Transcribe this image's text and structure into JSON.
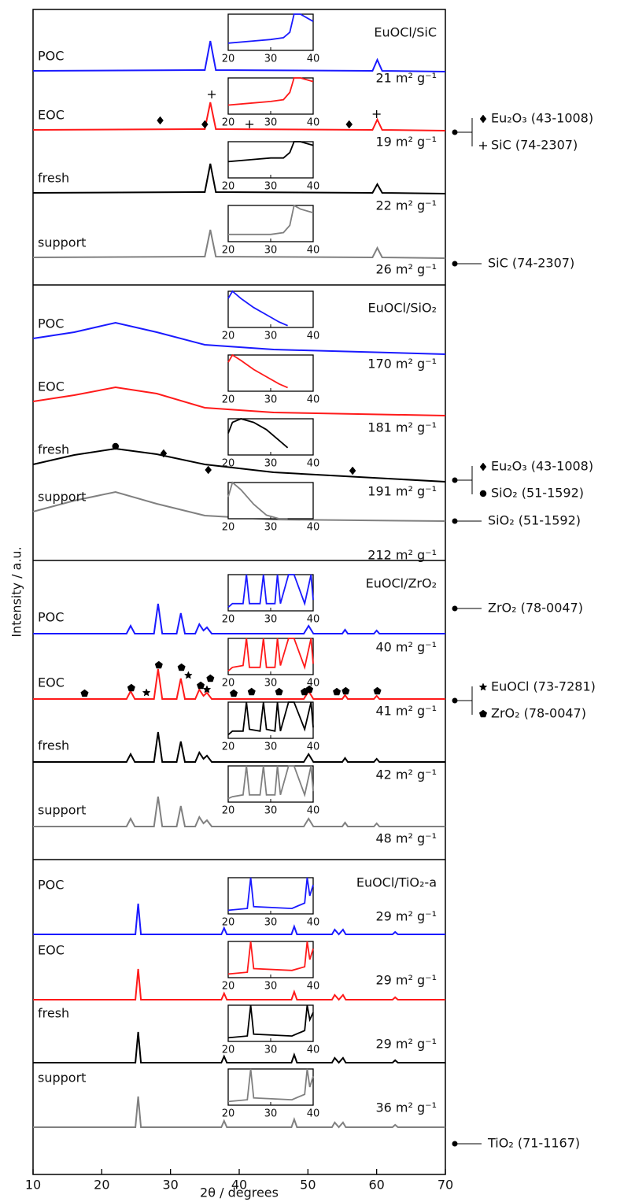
{
  "chart_data": {
    "type": "line",
    "xlabel": "2θ / degrees",
    "ylabel": "Intensity / a.u.",
    "xlim": [
      10,
      70
    ],
    "xticks": [
      10,
      20,
      30,
      40,
      50,
      60,
      70
    ],
    "ylim": [
      0,
      148
    ],
    "inset_xlim": [
      20,
      40
    ],
    "inset_xticks": [
      20,
      30,
      40
    ],
    "inset_ylim": [
      0,
      10
    ],
    "panels": [
      {
        "title": "EuOCl/SiC",
        "x": [
          10,
          35,
          35.8,
          36.6,
          59.4,
          60.1,
          60.8,
          70
        ],
        "inset_x": [
          20,
          25,
          30,
          33,
          34.5,
          35.5,
          37,
          40
        ],
        "series": [
          {
            "name": "POC",
            "color": "#1a1aff",
            "surface_area": "21 m² g⁻¹",
            "values": [
              140.2,
              140.3,
              144.0,
              140.3,
              140.2,
              141.6,
              140.2,
              140.1
            ],
            "inset_values": [
              2,
              2.5,
              3,
              3.5,
              5,
              10,
              10,
              8
            ]
          },
          {
            "name": "EOC",
            "color": "#ff1a1a",
            "surface_area": "19 m² g⁻¹",
            "values": [
              132.7,
              132.8,
              136.2,
              132.8,
              132.7,
              134.0,
              132.7,
              132.6
            ],
            "inset_values": [
              2.5,
              3,
              3.5,
              4,
              6,
              10,
              10,
              9
            ]
          },
          {
            "name": "fresh",
            "color": "#000000",
            "surface_area": "22 m² g⁻¹",
            "values": [
              124.7,
              124.8,
              128.4,
              124.8,
              124.7,
              125.8,
              124.7,
              124.6
            ],
            "inset_values": [
              4.5,
              5,
              5.5,
              5.5,
              7,
              10,
              10,
              9
            ]
          },
          {
            "name": "support",
            "color": "#808080",
            "surface_area": "26 m² g⁻¹",
            "values": [
              116.5,
              116.6,
              120.0,
              116.6,
              116.5,
              117.7,
              116.5,
              116.4
            ],
            "inset_values": [
              2,
              2,
              2,
              2.5,
              4.5,
              10,
              9,
              8
            ]
          }
        ],
        "markers": [
          {
            "symbol": "diamond",
            "x": 28.5,
            "y": 133.9
          },
          {
            "symbol": "diamond",
            "x": 35,
            "y": 133.4
          },
          {
            "symbol": "diamond",
            "x": 56,
            "y": 133.4
          },
          {
            "symbol": "plus",
            "x": 36,
            "y": 137.2
          },
          {
            "symbol": "plus",
            "x": 41.5,
            "y": 133.4
          },
          {
            "symbol": "plus",
            "x": 60,
            "y": 134.7
          }
        ],
        "phases": [
          {
            "symbol": "diamond",
            "label": "Eu₂O₃ (43-1008)"
          },
          {
            "symbol": "plus",
            "label": "SiC (74-2307)"
          }
        ],
        "support_phase": "SiC (74-2307)"
      },
      {
        "title": "EuOCl/SiO₂",
        "x": [
          10,
          16,
          22,
          28,
          35,
          45,
          70
        ],
        "inset_x": [
          20,
          21,
          23,
          26,
          29,
          32,
          34
        ],
        "series": [
          {
            "name": "POC",
            "color": "#1a1aff",
            "surface_area": "170 m² g⁻¹",
            "values": [
              106.2,
              107.0,
              108.2,
              107.0,
              105.4,
              104.8,
              104.2
            ],
            "inset_values": [
              8,
              10,
              8,
              5.5,
              3.5,
              1.5,
              0.5
            ]
          },
          {
            "name": "EOC",
            "color": "#ff1a1a",
            "surface_area": "181 m² g⁻¹",
            "values": [
              98.2,
              99.0,
              100.0,
              99.2,
              97.4,
              96.8,
              96.4
            ],
            "inset_values": [
              8,
              10,
              8.5,
              6,
              4,
              2,
              1
            ]
          },
          {
            "name": "fresh",
            "color": "#000000",
            "surface_area": "191 m² g⁻¹",
            "values": [
              90.2,
              91.4,
              92.2,
              91.5,
              90.2,
              89.2,
              88.0
            ],
            "inset_values": [
              6,
              9,
              10,
              9,
              7,
              4,
              2
            ]
          },
          {
            "name": "support",
            "color": "#808080",
            "surface_area": "212 m² g⁻¹",
            "values": [
              84.2,
              85.6,
              86.7,
              85.2,
              83.7,
              83.2,
              83.0
            ],
            "inset_values": [
              6,
              10,
              8,
              4,
              1,
              0,
              0
            ]
          }
        ],
        "markers": [
          {
            "symbol": "circle",
            "x": 22,
            "y": 92.5
          },
          {
            "symbol": "diamond",
            "x": 29,
            "y": 91.6
          },
          {
            "symbol": "diamond",
            "x": 35.5,
            "y": 89.5
          },
          {
            "symbol": "diamond",
            "x": 56.5,
            "y": 89.4
          }
        ],
        "phases": [
          {
            "symbol": "diamond",
            "label": "Eu₂O₃ (43-1008)"
          },
          {
            "symbol": "circle",
            "label": "SiO₂ (51-1592)"
          }
        ],
        "support_phase": "SiO₂ (51-1592)"
      },
      {
        "title": "EuOCl/ZrO₂",
        "x": [
          10,
          23.6,
          24.2,
          24.8,
          27.6,
          28.2,
          28.8,
          30.9,
          31.5,
          32.1,
          33.6,
          34.2,
          34.8,
          35.3,
          36,
          49.4,
          50.1,
          50.8,
          55,
          55.4,
          55.8,
          59.6,
          60,
          60.4,
          70
        ],
        "inset_x": [
          20,
          21,
          23.5,
          24.3,
          25,
          27.5,
          28.3,
          29,
          31,
          31.6,
          32.3,
          34.2,
          35.5,
          38,
          39.5,
          40
        ],
        "series": [
          {
            "name": "POC",
            "color": "#1a1aff",
            "surface_area": "40 m² g⁻¹",
            "values": [
              68.7,
              68.7,
              69.7,
              68.7,
              68.7,
              72.5,
              68.7,
              68.7,
              71.3,
              68.7,
              68.7,
              69.9,
              69.1,
              69.5,
              68.7,
              68.7,
              69.7,
              68.7,
              68.7,
              69.2,
              68.7,
              68.7,
              69.1,
              68.7,
              68.7
            ],
            "inset_values": [
              1,
              2,
              2,
              10,
              2,
              2,
              10,
              2,
              2,
              10,
              2,
              10,
              10,
              2,
              10,
              3
            ]
          },
          {
            "name": "EOC",
            "color": "#ff1a1a",
            "surface_area": "41 m² g⁻¹",
            "values": [
              60.4,
              60.4,
              61.4,
              60.4,
              60.4,
              64.2,
              60.4,
              60.4,
              63.0,
              60.4,
              60.4,
              61.6,
              60.8,
              61.2,
              60.4,
              60.4,
              61.4,
              60.4,
              60.4,
              60.9,
              60.4,
              60.4,
              60.8,
              60.4,
              60.4
            ],
            "inset_values": [
              1,
              2,
              2.5,
              10,
              2,
              2,
              10,
              2,
              2,
              10,
              2.5,
              10,
              10,
              2,
              10,
              3
            ]
          },
          {
            "name": "fresh",
            "color": "#000000",
            "surface_area": "42 m² g⁻¹",
            "values": [
              52.4,
              52.4,
              53.4,
              52.4,
              52.4,
              56.2,
              52.4,
              52.4,
              55.0,
              52.4,
              52.4,
              53.6,
              52.8,
              53.2,
              52.4,
              52.4,
              53.4,
              52.4,
              52.4,
              52.9,
              52.4,
              52.4,
              52.8,
              52.4,
              52.4
            ],
            "inset_values": [
              1,
              2,
              2,
              10,
              2.5,
              2,
              10,
              2.5,
              2,
              10,
              2,
              10,
              10,
              2.5,
              10,
              3
            ]
          },
          {
            "name": "support",
            "color": "#808080",
            "surface_area": "48 m² g⁻¹",
            "values": [
              44.2,
              44.2,
              45.2,
              44.2,
              44.2,
              48.0,
              44.2,
              44.2,
              46.8,
              44.2,
              44.2,
              45.4,
              44.6,
              45.0,
              44.2,
              44.2,
              45.2,
              44.2,
              44.2,
              44.7,
              44.2,
              44.2,
              44.6,
              44.2,
              44.2
            ],
            "inset_values": [
              1,
              1.5,
              2,
              10,
              2,
              2,
              10,
              2,
              2,
              10,
              2,
              10,
              10,
              2,
              10,
              3
            ]
          }
        ],
        "markers": [
          {
            "symbol": "pentagon",
            "x": 17.5,
            "y": 61.1
          },
          {
            "symbol": "pentagon",
            "x": 24.3,
            "y": 61.8
          },
          {
            "symbol": "pentagon",
            "x": 28.3,
            "y": 64.7
          },
          {
            "symbol": "pentagon",
            "x": 31.6,
            "y": 64.4
          },
          {
            "symbol": "pentagon",
            "x": 34.4,
            "y": 62.1
          },
          {
            "symbol": "pentagon",
            "x": 35.8,
            "y": 63.0
          },
          {
            "symbol": "pentagon",
            "x": 39.2,
            "y": 61.1
          },
          {
            "symbol": "pentagon",
            "x": 41.8,
            "y": 61.3
          },
          {
            "symbol": "pentagon",
            "x": 45.8,
            "y": 61.3
          },
          {
            "symbol": "pentagon",
            "x": 49.5,
            "y": 61.3
          },
          {
            "symbol": "pentagon",
            "x": 50.2,
            "y": 61.6
          },
          {
            "symbol": "pentagon",
            "x": 54.2,
            "y": 61.3
          },
          {
            "symbol": "pentagon",
            "x": 55.5,
            "y": 61.4
          },
          {
            "symbol": "pentagon",
            "x": 60.1,
            "y": 61.4
          },
          {
            "symbol": "star",
            "x": 26.5,
            "y": 61.2
          },
          {
            "symbol": "star",
            "x": 32.6,
            "y": 63.4
          },
          {
            "symbol": "star",
            "x": 35.3,
            "y": 61.6
          }
        ],
        "phases": [
          {
            "symbol": "star",
            "label": "EuOCl (73-7281)"
          },
          {
            "symbol": "pentagon",
            "label": "ZrO₂ (78-0047)"
          }
        ],
        "support_phase": "ZrO₂ (78-0047)"
      },
      {
        "title": "EuOCl/TiO₂-a",
        "x": [
          10,
          24.9,
          25.3,
          25.7,
          37.4,
          37.8,
          38.2,
          47.6,
          48.0,
          48.4,
          53.5,
          53.9,
          54.5,
          55.1,
          55.5,
          62.3,
          62.7,
          63.1,
          70
        ],
        "inset_x": [
          20,
          24.5,
          25.3,
          26,
          35,
          38,
          38.6,
          39.2,
          40
        ],
        "series": [
          {
            "name": "POC",
            "color": "#1a1aff",
            "surface_area": "29 m² g⁻¹",
            "values": [
              30.5,
              30.5,
              34.4,
              30.5,
              30.5,
              31.3,
              30.5,
              30.5,
              31.5,
              30.5,
              30.5,
              31.1,
              30.5,
              31.1,
              30.5,
              30.5,
              30.8,
              30.5,
              30.5
            ],
            "inset_values": [
              1,
              1.5,
              10,
              2,
              1.5,
              3,
              10,
              5,
              8
            ]
          },
          {
            "name": "EOC",
            "color": "#ff1a1a",
            "surface_area": "29 m² g⁻¹",
            "values": [
              22.2,
              22.2,
              26.1,
              22.2,
              22.2,
              23.0,
              22.2,
              22.2,
              23.2,
              22.2,
              22.2,
              22.8,
              22.2,
              22.8,
              22.2,
              22.2,
              22.5,
              22.2,
              22.2
            ],
            "inset_values": [
              1,
              1.5,
              10,
              2.5,
              2,
              3,
              10,
              5,
              8
            ]
          },
          {
            "name": "fresh",
            "color": "#000000",
            "surface_area": "29 m² g⁻¹",
            "values": [
              14.2,
              14.2,
              18.1,
              14.2,
              14.2,
              15.0,
              14.2,
              14.2,
              15.2,
              14.2,
              14.2,
              14.8,
              14.2,
              14.8,
              14.2,
              14.2,
              14.5,
              14.2,
              14.2
            ],
            "inset_values": [
              1,
              1.5,
              10,
              2,
              1.5,
              3,
              10,
              6,
              8
            ]
          },
          {
            "name": "support",
            "color": "#808080",
            "surface_area": "36 m² g⁻¹",
            "values": [
              6.0,
              6.0,
              9.9,
              6.0,
              6.0,
              6.8,
              6.0,
              6.0,
              7.0,
              6.0,
              6.0,
              6.6,
              6.0,
              6.6,
              6.0,
              6.0,
              6.3,
              6.0,
              6.0
            ],
            "inset_values": [
              1,
              1.5,
              10,
              2,
              1.5,
              3,
              10,
              5,
              8
            ]
          }
        ],
        "support_phase": "TiO₂ (71-1167)"
      }
    ]
  }
}
